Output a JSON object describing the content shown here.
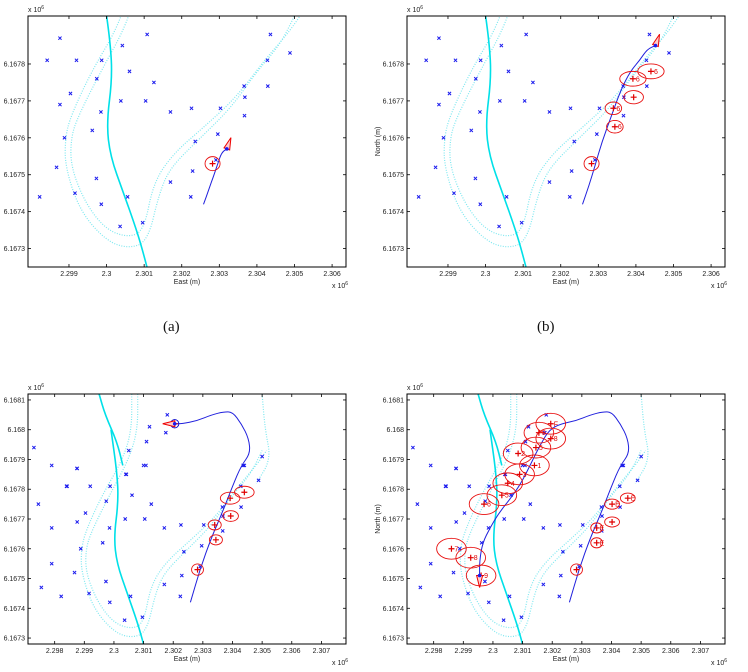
{
  "chart_data": [
    {
      "id": "a",
      "type": "scatter",
      "caption": "(a)",
      "xlabel": "East (m)",
      "ylabel": "",
      "x_exponent": "x 10",
      "x_exponent_power": "6",
      "y_exponent": "x 10",
      "y_exponent_power": "6",
      "xlim": [
        2.29791,
        2.30637
      ],
      "ylim": [
        6.16725,
        6.16793
      ],
      "xticks": [
        2.299,
        2.3,
        2.301,
        2.302,
        2.303,
        2.304,
        2.305,
        2.306
      ],
      "xtick_labels": [
        "2.299",
        "2.3",
        "2.301",
        "2.302",
        "2.303",
        "2.304",
        "2.305",
        "2.306"
      ],
      "yticks": [
        6.1673,
        6.1674,
        6.1675,
        6.1676,
        6.1677,
        6.1678
      ],
      "ytick_labels": [
        "6.1673",
        "6.1674",
        "6.1675",
        "6.1676",
        "6.1677",
        "6.1678"
      ],
      "landmark_set": "lower",
      "trajectory": [
        [
          2.30258,
          6.16742
        ],
        [
          2.30272,
          6.16746
        ],
        [
          2.30286,
          6.1675
        ],
        [
          2.30296,
          6.16753
        ],
        [
          2.30306,
          6.16756
        ],
        [
          2.3032,
          6.16757
        ]
      ],
      "vehicle": {
        "x": 2.3032,
        "y": 6.16757,
        "heading_deg": 70
      },
      "estimates": [
        {
          "x": 2.30282,
          "y": 6.16753,
          "rx": 0.0002,
          "ry": 1.9e-05,
          "label": ""
        }
      ]
    },
    {
      "id": "b",
      "type": "scatter",
      "caption": "(b)",
      "xlabel": "East (m)",
      "ylabel": "North (m)",
      "x_exponent": "x 10",
      "x_exponent_power": "6",
      "y_exponent": "x 10",
      "y_exponent_power": "6",
      "xlim": [
        2.29791,
        2.30637
      ],
      "ylim": [
        6.16725,
        6.16793
      ],
      "xticks": [
        2.299,
        2.3,
        2.301,
        2.302,
        2.303,
        2.304,
        2.305,
        2.306
      ],
      "xtick_labels": [
        "2.299",
        "2.3",
        "2.301",
        "2.302",
        "2.303",
        "2.304",
        "2.305",
        "2.306"
      ],
      "yticks": [
        6.1673,
        6.1674,
        6.1675,
        6.1676,
        6.1677,
        6.1678
      ],
      "ytick_labels": [
        "6.1673",
        "6.1674",
        "6.1675",
        "6.1676",
        "6.1677",
        "6.1678"
      ],
      "landmark_set": "lower",
      "trajectory": [
        [
          2.30258,
          6.16742
        ],
        [
          2.30275,
          6.16747
        ],
        [
          2.3029,
          6.16752
        ],
        [
          2.3031,
          6.16759
        ],
        [
          2.30335,
          6.16766
        ],
        [
          2.3036,
          6.16773
        ],
        [
          2.30385,
          6.16778
        ],
        [
          2.3041,
          6.16781
        ],
        [
          2.3043,
          6.16784
        ],
        [
          2.30452,
          6.16785
        ]
      ],
      "vehicle": {
        "x": 2.30452,
        "y": 6.16785,
        "heading_deg": 70
      },
      "estimates": [
        {
          "x": 2.30282,
          "y": 6.16753,
          "rx": 0.0002,
          "ry": 1.9e-05,
          "label": ""
        },
        {
          "x": 2.30344,
          "y": 6.16763,
          "rx": 0.00022,
          "ry": 1.7e-05,
          "label": "6"
        },
        {
          "x": 2.3034,
          "y": 6.16768,
          "rx": 0.00022,
          "ry": 1.7e-05,
          "label": "6"
        },
        {
          "x": 2.30394,
          "y": 6.16771,
          "rx": 0.00026,
          "ry": 1.8e-05,
          "label": ""
        },
        {
          "x": 2.30392,
          "y": 6.16776,
          "rx": 0.00035,
          "ry": 2e-05,
          "label": "6"
        },
        {
          "x": 2.3044,
          "y": 6.16778,
          "rx": 0.00035,
          "ry": 2e-05,
          "label": "6"
        }
      ]
    },
    {
      "id": "c",
      "type": "scatter",
      "caption": "",
      "xlabel": "East (m)",
      "ylabel": "",
      "x_exponent": "x 10",
      "x_exponent_power": "6",
      "y_exponent": "x 10",
      "y_exponent_power": "6",
      "xlim": [
        2.2971,
        2.30783
      ],
      "ylim": [
        6.16728,
        6.16812
      ],
      "xticks": [
        2.298,
        2.299,
        2.3,
        2.301,
        2.302,
        2.303,
        2.304,
        2.305,
        2.306,
        2.307
      ],
      "xtick_labels": [
        "2.298",
        "2.299",
        "2.3",
        "2.301",
        "2.302",
        "2.303",
        "2.304",
        "2.305",
        "2.306",
        "2.307"
      ],
      "yticks": [
        6.1673,
        6.1674,
        6.1675,
        6.1676,
        6.1677,
        6.1678,
        6.1679,
        6.168,
        6.1681
      ],
      "ytick_labels": [
        "6.1673",
        "6.1674",
        "6.1675",
        "6.1676",
        "6.1677",
        "6.1678",
        "6.1679",
        "6.168",
        "6.1681"
      ],
      "landmark_set": "full",
      "trajectory": [
        [
          2.30258,
          6.16742
        ],
        [
          2.3029,
          6.16753
        ],
        [
          2.3033,
          6.16764
        ],
        [
          2.30365,
          6.16772
        ],
        [
          2.304,
          6.16781
        ],
        [
          2.3043,
          6.16788
        ],
        [
          2.3046,
          6.16792
        ],
        [
          2.30455,
          6.16797
        ],
        [
          2.3043,
          6.16802
        ],
        [
          2.304,
          6.16806
        ],
        [
          2.3037,
          6.16806
        ],
        [
          2.3033,
          6.16805
        ],
        [
          2.3028,
          6.16803
        ],
        [
          2.3023,
          6.16802
        ],
        [
          2.30205,
          6.16802
        ]
      ],
      "vehicle": {
        "x": 2.30205,
        "y": 6.16802,
        "heading_deg": 180
      },
      "estimates": [
        {
          "x": 2.30282,
          "y": 6.16753,
          "rx": 0.0002,
          "ry": 1.9e-05,
          "label": ""
        },
        {
          "x": 2.30344,
          "y": 6.16763,
          "rx": 0.00022,
          "ry": 1.7e-05,
          "label": ""
        },
        {
          "x": 2.3034,
          "y": 6.16768,
          "rx": 0.00022,
          "ry": 1.7e-05,
          "label": ""
        },
        {
          "x": 2.30394,
          "y": 6.16771,
          "rx": 0.00026,
          "ry": 1.8e-05,
          "label": ""
        },
        {
          "x": 2.30392,
          "y": 6.16777,
          "rx": 0.00033,
          "ry": 2e-05,
          "label": ""
        },
        {
          "x": 2.3044,
          "y": 6.16779,
          "rx": 0.00033,
          "ry": 2e-05,
          "label": ""
        },
        {
          "x": 2.30205,
          "y": 6.16802,
          "rx": 0.00014,
          "ry": 1.4e-05,
          "label": "",
          "color": "#0000cc"
        }
      ]
    },
    {
      "id": "d",
      "type": "scatter",
      "caption": "",
      "xlabel": "East (m)",
      "ylabel": "North (m)",
      "x_exponent": "x 10",
      "x_exponent_power": "6",
      "y_exponent": "x 10",
      "y_exponent_power": "6",
      "xlim": [
        2.2971,
        2.30783
      ],
      "ylim": [
        6.16728,
        6.16812
      ],
      "xticks": [
        2.298,
        2.299,
        2.3,
        2.301,
        2.302,
        2.303,
        2.304,
        2.305,
        2.306,
        2.307
      ],
      "xtick_labels": [
        "2.298",
        "2.299",
        "2.3",
        "2.301",
        "2.302",
        "2.303",
        "2.304",
        "2.305",
        "2.306",
        "2.307"
      ],
      "yticks": [
        6.1673,
        6.1674,
        6.1675,
        6.1676,
        6.1677,
        6.1678,
        6.1679,
        6.168,
        6.1681
      ],
      "ytick_labels": [
        "6.1673",
        "6.1674",
        "6.1675",
        "6.1676",
        "6.1677",
        "6.1678",
        "6.1679",
        "6.168",
        "6.1681"
      ],
      "landmark_set": "full",
      "trajectory": [
        [
          2.30258,
          6.16742
        ],
        [
          2.3029,
          6.16753
        ],
        [
          2.3033,
          6.16764
        ],
        [
          2.30365,
          6.16772
        ],
        [
          2.304,
          6.16781
        ],
        [
          2.3043,
          6.16788
        ],
        [
          2.3046,
          6.16792
        ],
        [
          2.30455,
          6.16797
        ],
        [
          2.3043,
          6.16802
        ],
        [
          2.304,
          6.16806
        ],
        [
          2.3037,
          6.16806
        ],
        [
          2.3033,
          6.16805
        ],
        [
          2.3028,
          6.16803
        ],
        [
          2.3023,
          6.16802
        ],
        [
          2.3019,
          6.168
        ],
        [
          2.3016,
          6.16795
        ],
        [
          2.3013,
          6.16789
        ],
        [
          2.30095,
          6.16782
        ],
        [
          2.3006,
          6.16777
        ],
        [
          2.3002,
          6.16772
        ],
        [
          2.2999,
          6.16767
        ],
        [
          2.29965,
          6.16762
        ],
        [
          2.29955,
          6.16756
        ],
        [
          2.29955,
          6.16751
        ]
      ],
      "vehicle": {
        "x": 2.29955,
        "y": 6.16751,
        "heading_deg": 270
      },
      "estimates": [
        {
          "x": 2.30282,
          "y": 6.16753,
          "rx": 0.0002,
          "ry": 1.9e-05,
          "label": ""
        },
        {
          "x": 2.3035,
          "y": 6.16762,
          "rx": 0.0002,
          "ry": 1.7e-05,
          "label": "E"
        },
        {
          "x": 2.3035,
          "y": 6.16767,
          "rx": 0.0002,
          "ry": 1.7e-05,
          "label": "E"
        },
        {
          "x": 2.30402,
          "y": 6.16769,
          "rx": 0.00025,
          "ry": 1.7e-05,
          "label": ""
        },
        {
          "x": 2.30402,
          "y": 6.16775,
          "rx": 0.00025,
          "ry": 1.7e-05,
          "label": "E"
        },
        {
          "x": 2.30455,
          "y": 6.16777,
          "rx": 0.00025,
          "ry": 1.7e-05,
          "label": "E"
        },
        {
          "x": 2.30195,
          "y": 6.16802,
          "rx": 0.0005,
          "ry": 3.5e-05,
          "label": "F"
        },
        {
          "x": 2.30195,
          "y": 6.16797,
          "rx": 0.0005,
          "ry": 3.5e-05,
          "label": "8"
        },
        {
          "x": 2.30155,
          "y": 6.16799,
          "rx": 0.0005,
          "ry": 3.5e-05,
          "label": "8"
        },
        {
          "x": 2.30145,
          "y": 6.16794,
          "rx": 0.0005,
          "ry": 3.5e-05,
          "label": "5"
        },
        {
          "x": 2.30085,
          "y": 6.16792,
          "rx": 0.0005,
          "ry": 3.5e-05,
          "label": "2"
        },
        {
          "x": 2.3014,
          "y": 6.16788,
          "rx": 0.0005,
          "ry": 3.5e-05,
          "label": "1"
        },
        {
          "x": 2.3009,
          "y": 6.16785,
          "rx": 0.0005,
          "ry": 3.5e-05,
          "label": "3"
        },
        {
          "x": 2.3005,
          "y": 6.16782,
          "rx": 0.0005,
          "ry": 3.5e-05,
          "label": "4"
        },
        {
          "x": 2.3003,
          "y": 6.16778,
          "rx": 0.0005,
          "ry": 3.5e-05,
          "label": "5"
        },
        {
          "x": 2.2997,
          "y": 6.16775,
          "rx": 0.0005,
          "ry": 3.5e-05,
          "label": "6"
        },
        {
          "x": 2.2986,
          "y": 6.1676,
          "rx": 0.0005,
          "ry": 3.5e-05,
          "label": "7"
        },
        {
          "x": 2.29925,
          "y": 6.16757,
          "rx": 0.0005,
          "ry": 3.5e-05,
          "label": "8"
        },
        {
          "x": 2.2996,
          "y": 6.16751,
          "rx": 0.0005,
          "ry": 3.5e-05,
          "label": "9"
        }
      ]
    }
  ],
  "landmarks": {
    "lower": [
      [
        2.29876,
        6.16787
      ],
      [
        2.29842,
        6.16781
      ],
      [
        2.2992,
        6.16781
      ],
      [
        2.29987,
        6.16781
      ],
      [
        2.30042,
        6.16785
      ],
      [
        2.30108,
        6.16788
      ],
      [
        2.29974,
        6.16776
      ],
      [
        2.30061,
        6.16778
      ],
      [
        2.30126,
        6.16775
      ],
      [
        2.29904,
        6.16772
      ],
      [
        2.29876,
        6.16769
      ],
      [
        2.29985,
        6.16767
      ],
      [
        2.30038,
        6.1677
      ],
      [
        2.30104,
        6.1677
      ],
      [
        2.3017,
        6.16767
      ],
      [
        2.30226,
        6.16768
      ],
      [
        2.30303,
        6.16768
      ],
      [
        2.29962,
        6.16762
      ],
      [
        2.29888,
        6.1676
      ],
      [
        2.30236,
        6.16759
      ],
      [
        2.30296,
        6.16761
      ],
      [
        2.29867,
        6.16752
      ],
      [
        2.30229,
        6.16751
      ],
      [
        2.30291,
        6.16754
      ],
      [
        2.29973,
        6.16749
      ],
      [
        2.3017,
        6.16748
      ],
      [
        2.29822,
        6.16744
      ],
      [
        2.29916,
        6.16745
      ],
      [
        2.30056,
        6.16744
      ],
      [
        2.30224,
        6.16744
      ],
      [
        2.29986,
        6.16742
      ],
      [
        2.30036,
        6.16736
      ],
      [
        2.30096,
        6.16737
      ],
      [
        2.30366,
        6.16774
      ],
      [
        2.30368,
        6.16771
      ],
      [
        2.30367,
        6.16766
      ],
      [
        2.30428,
        6.16781
      ],
      [
        2.30429,
        6.16774
      ],
      [
        2.30436,
        6.16788
      ],
      [
        2.30488,
        6.16783
      ]
    ],
    "extra_upper": [
      [
        2.2973,
        6.16794
      ],
      [
        2.2979,
        6.16788
      ],
      [
        2.29875,
        6.16787
      ],
      [
        2.2984,
        6.16781
      ],
      [
        2.29745,
        6.16775
      ],
      [
        2.2979,
        6.16767
      ],
      [
        2.2979,
        6.16755
      ],
      [
        2.29755,
        6.16747
      ],
      [
        2.3018,
        6.16805
      ],
      [
        2.3012,
        6.16801
      ],
      [
        2.30175,
        6.16799
      ],
      [
        2.3011,
        6.16796
      ],
      [
        2.3005,
        6.16793
      ],
      [
        2.301,
        6.16788
      ],
      [
        2.3004,
        6.16785
      ],
      [
        2.305,
        6.16791
      ],
      [
        2.3044,
        6.16788
      ]
    ]
  },
  "boundaries": {
    "river_center": [
      [
        2.2999,
        6.168
      ],
      [
        2.3001,
        6.16786
      ],
      [
        2.30015,
        6.16776
      ],
      [
        2.3,
        6.16764
      ],
      [
        2.3001,
        6.16755
      ],
      [
        2.30045,
        6.16745
      ],
      [
        2.3008,
        6.16735
      ],
      [
        2.301,
        6.16728
      ],
      [
        2.3012,
        6.1672
      ]
    ],
    "river_center_ext": [
      [
        2.2995,
        6.16812
      ],
      [
        2.2997,
        6.16805
      ],
      [
        2.3001,
        6.16796
      ],
      [
        2.3003,
        6.16788
      ]
    ],
    "shore_west": [
      [
        2.3006,
        6.16812
      ],
      [
        2.3006,
        6.168
      ],
      [
        2.3003,
        6.1679
      ],
      [
        2.2996,
        6.16778
      ],
      [
        2.29905,
        6.16766
      ],
      [
        2.2989,
        6.1676
      ],
      [
        2.2989,
        6.16752
      ],
      [
        2.2993,
        6.1674
      ],
      [
        2.3,
        6.16732
      ],
      [
        2.3006,
        6.1673
      ],
      [
        2.3011,
        6.16732
      ],
      [
        2.3014,
        6.16745
      ],
      [
        2.3017,
        6.16752
      ],
      [
        2.3025,
        6.1676
      ],
      [
        2.3033,
        6.16768
      ],
      [
        2.304,
        6.16778
      ],
      [
        2.3046,
        6.16785
      ],
      [
        2.305,
        6.16793
      ]
    ],
    "shore_east": [
      [
        2.3008,
        6.16812
      ],
      [
        2.3008,
        6.168
      ],
      [
        2.3005,
        6.1679
      ],
      [
        2.29985,
        6.16778
      ],
      [
        2.29925,
        6.16766
      ],
      [
        2.29905,
        6.1676
      ],
      [
        2.29905,
        6.16752
      ],
      [
        2.29945,
        6.16742
      ],
      [
        2.3,
        6.16735
      ],
      [
        2.3006,
        6.16733
      ],
      [
        2.301,
        6.16735
      ],
      [
        2.30125,
        6.16748
      ],
      [
        2.3018,
        6.16756
      ],
      [
        2.3026,
        6.16763
      ],
      [
        2.30345,
        6.16771
      ],
      [
        2.3042,
        6.16781
      ],
      [
        2.3048,
        6.16788
      ],
      [
        2.30515,
        6.16793
      ]
    ],
    "shore_far_east": [
      [
        2.305,
        6.16812
      ],
      [
        2.3051,
        6.168
      ],
      [
        2.3053,
        6.1679
      ],
      [
        2.3048,
        6.16782
      ]
    ]
  }
}
